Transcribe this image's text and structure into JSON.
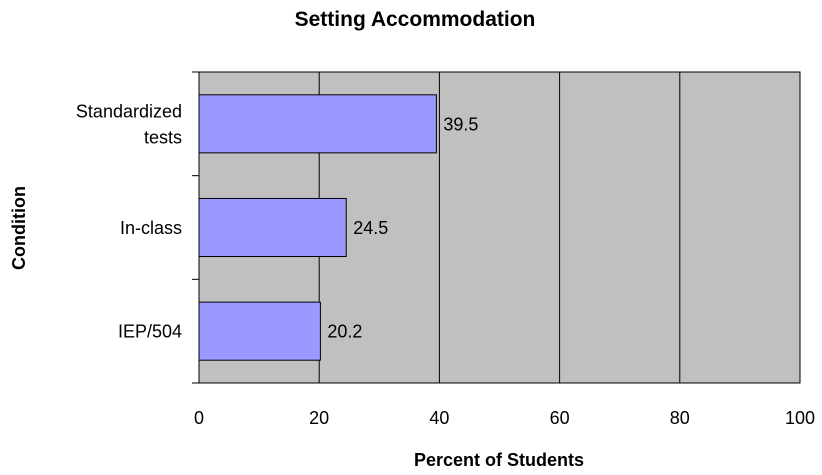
{
  "chart_data": {
    "type": "bar",
    "orientation": "horizontal",
    "title": "Setting Accommodation",
    "xlabel": "Percent of Students",
    "ylabel": "Condition",
    "categories": [
      [
        "Standardized",
        "tests"
      ],
      [
        "In-class"
      ],
      [
        "IEP/504"
      ]
    ],
    "values": [
      39.5,
      24.5,
      20.2
    ],
    "data_labels": [
      "39.5",
      "24.5",
      "20.2"
    ],
    "xlim": [
      0,
      100
    ],
    "xticks": [
      0,
      20,
      40,
      60,
      80,
      100
    ],
    "xtick_labels": [
      "0",
      "20",
      "40",
      "60",
      "80",
      "100"
    ],
    "grid": true,
    "legend": "none",
    "colors": {
      "bar_fill": "#9999ff",
      "plot_background": "#c0c0c0",
      "gridline": "#000000",
      "outline": "#000000"
    }
  }
}
